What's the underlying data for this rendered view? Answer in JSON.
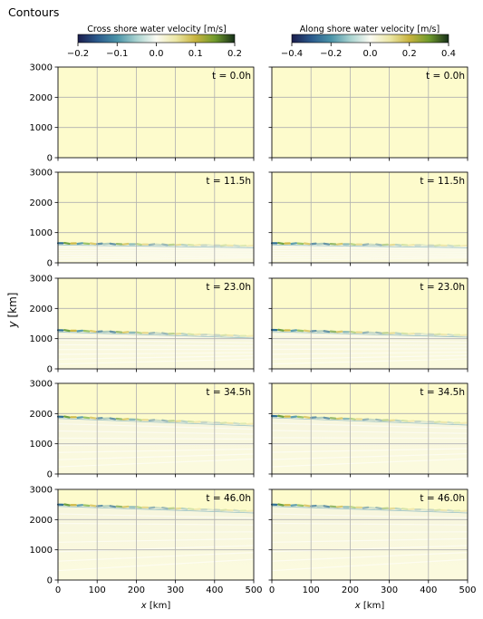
{
  "figure": {
    "title": "Contours",
    "ylabel": "y [km]",
    "xlabel": "x [km]"
  },
  "colorbars": [
    {
      "label": "Cross shore water velocity [m/s]",
      "range": [
        -0.2,
        0.2
      ],
      "ticks": [
        "−0.2",
        "−0.1",
        "0.0",
        "0.1",
        "0.2"
      ]
    },
    {
      "label": "Along shore water velocity [m/s]",
      "range": [
        -0.4,
        0.4
      ],
      "ticks": [
        "−0.4",
        "−0.2",
        "0.0",
        "0.2",
        "0.4"
      ]
    }
  ],
  "colormap": [
    "#1b1d4d",
    "#2b5a8c",
    "#4a93a8",
    "#a9d3d0",
    "#fbfbf3",
    "#ece7a6",
    "#c7b33e",
    "#6f9a2c",
    "#17301a"
  ],
  "chart_data": [
    {
      "type": "heatmap",
      "panel": "left",
      "time_label": "t = 0.0h",
      "front_y": null,
      "xlim": [
        0,
        500
      ],
      "ylim": [
        0,
        3000
      ]
    },
    {
      "type": "heatmap",
      "panel": "right",
      "time_label": "t = 0.0h",
      "front_y": null,
      "xlim": [
        0,
        500
      ],
      "ylim": [
        0,
        3000
      ]
    },
    {
      "type": "heatmap",
      "panel": "left",
      "time_label": "t = 11.5h",
      "front_y": [
        650,
        560
      ],
      "xlim": [
        0,
        500
      ],
      "ylim": [
        0,
        3000
      ]
    },
    {
      "type": "heatmap",
      "panel": "right",
      "time_label": "t = 11.5h",
      "front_y": [
        650,
        560
      ],
      "xlim": [
        0,
        500
      ],
      "ylim": [
        0,
        3000
      ]
    },
    {
      "type": "heatmap",
      "panel": "left",
      "time_label": "t = 23.0h",
      "front_y": [
        1280,
        1080
      ],
      "xlim": [
        0,
        500
      ],
      "ylim": [
        0,
        3000
      ]
    },
    {
      "type": "heatmap",
      "panel": "right",
      "time_label": "t = 23.0h",
      "front_y": [
        1290,
        1110
      ],
      "xlim": [
        0,
        500
      ],
      "ylim": [
        0,
        3000
      ]
    },
    {
      "type": "heatmap",
      "panel": "left",
      "time_label": "t = 34.5h",
      "front_y": [
        1900,
        1650
      ],
      "xlim": [
        0,
        500
      ],
      "ylim": [
        0,
        3000
      ]
    },
    {
      "type": "heatmap",
      "panel": "right",
      "time_label": "t = 34.5h",
      "front_y": [
        1920,
        1680
      ],
      "xlim": [
        0,
        500
      ],
      "ylim": [
        0,
        3000
      ]
    },
    {
      "type": "heatmap",
      "panel": "left",
      "time_label": "t = 46.0h",
      "front_y": [
        2500,
        2280
      ],
      "xlim": [
        0,
        500
      ],
      "ylim": [
        0,
        3000
      ]
    },
    {
      "type": "heatmap",
      "panel": "right",
      "time_label": "t = 46.0h",
      "front_y": [
        2500,
        2280
      ],
      "xlim": [
        0,
        500
      ],
      "ylim": [
        0,
        3000
      ]
    }
  ],
  "axes": {
    "x_ticks": [
      "0",
      "100",
      "200",
      "300",
      "400",
      "500"
    ],
    "y_ticks": [
      "0",
      "1000",
      "2000",
      "3000"
    ],
    "grid": true,
    "background": "#fdfbcc"
  }
}
